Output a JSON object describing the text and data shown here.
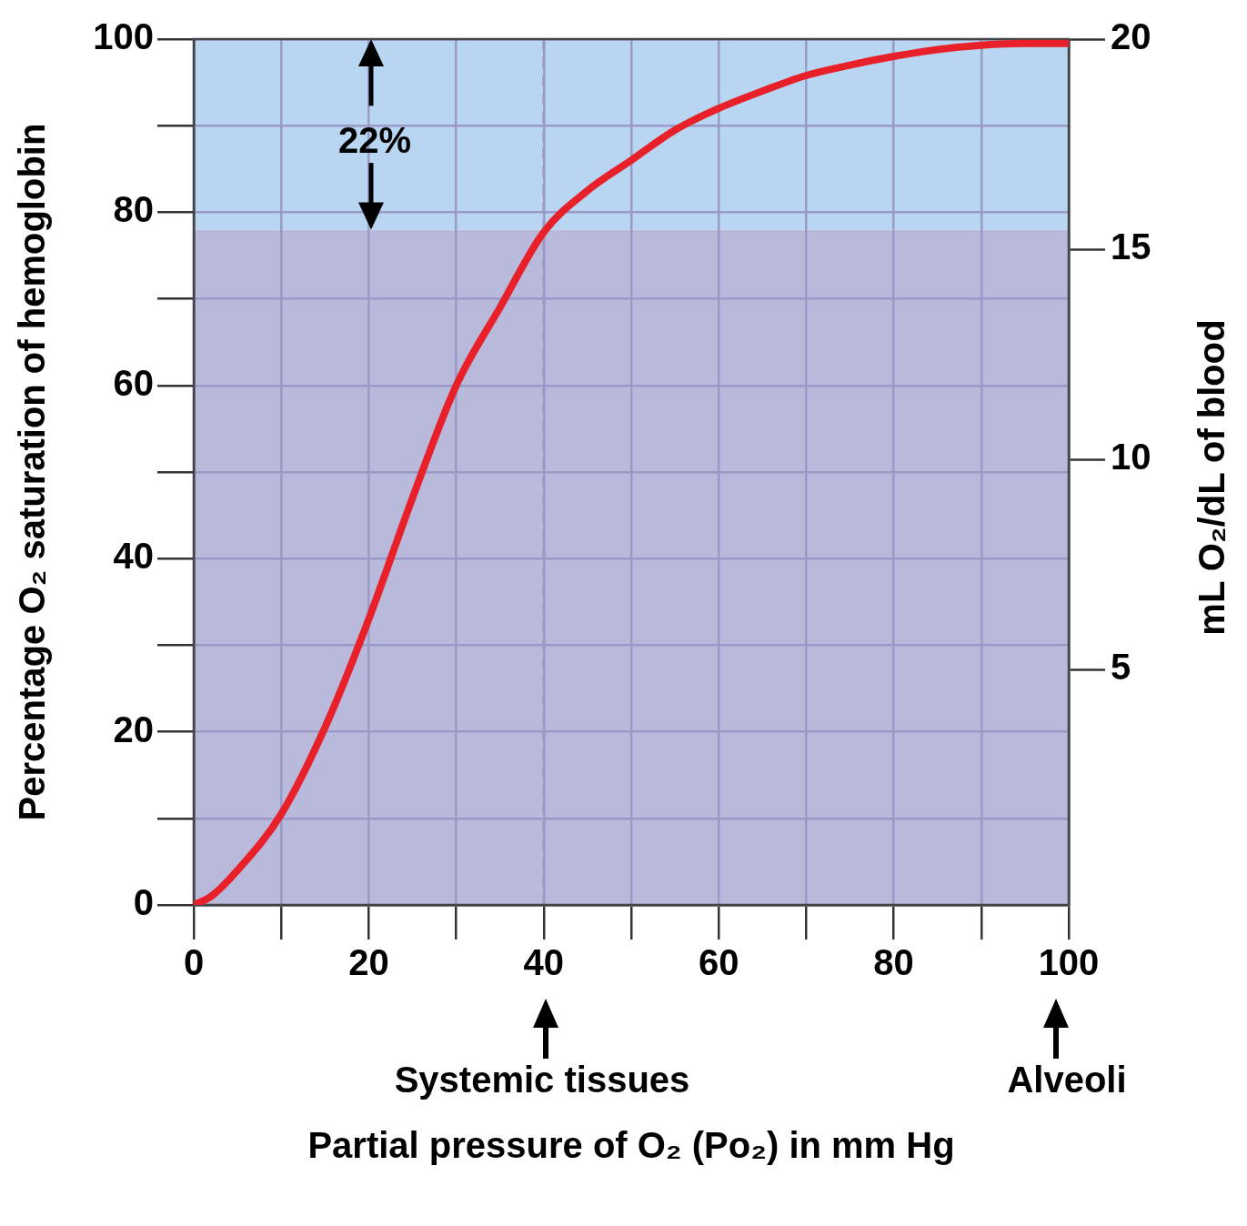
{
  "chart_data": {
    "type": "line",
    "xlabel": "Partial pressure of O₂ (Po₂) in mm Hg",
    "ylabel": "Percentage O₂ saturation of hemoglobin",
    "y2label": "mL O₂/dL of blood",
    "x": [
      0,
      2,
      5,
      10,
      15,
      20,
      25,
      30,
      35,
      40,
      45,
      50,
      55,
      60,
      65,
      70,
      75,
      80,
      85,
      90,
      95,
      100
    ],
    "series": [
      {
        "color": "#e8202a",
        "values": [
          0,
          1,
          4,
          10.5,
          20.5,
          33,
          47,
          60,
          69,
          77.7,
          82.5,
          86,
          89.5,
          92,
          94,
          95.8,
          97,
          98,
          98.8,
          99.3,
          99.5,
          99.5
        ]
      }
    ],
    "xlim": [
      0,
      100
    ],
    "xticks": [
      0,
      {
        "value": 10,
        "label": null
      },
      20,
      {
        "value": 30,
        "label": null
      },
      40,
      {
        "value": 50,
        "label": null
      },
      60,
      {
        "value": 70,
        "label": null
      },
      80,
      {
        "value": 90,
        "label": null
      },
      100
    ],
    "ylim": [
      0,
      100
    ],
    "yticks": [
      0,
      {
        "value": 10,
        "label": null
      },
      20,
      {
        "value": 30,
        "label": null
      },
      40,
      {
        "value": 50,
        "label": null
      },
      60,
      {
        "value": 70,
        "label": null
      },
      80,
      {
        "value": 90,
        "label": null
      },
      100
    ],
    "y2lim": [
      -0.6,
      20
    ],
    "y2ticks": [
      5,
      10,
      15,
      20
    ],
    "bands": [
      {
        "axis": "y",
        "from": 0,
        "to": 78,
        "color": "#b9b9dc"
      },
      {
        "axis": "y",
        "from": 78,
        "to": 100,
        "color": "#b8d6f1"
      }
    ],
    "ref_lines": [
      {
        "axis": "x",
        "value": 40,
        "color": "#9a9ac8",
        "line_style": "dashed"
      }
    ],
    "annotations": [
      "22%",
      "Systemic tissues",
      "Alveoli"
    ],
    "grid": true,
    "legend": false,
    "marker": "none",
    "line_style": "solid"
  }
}
